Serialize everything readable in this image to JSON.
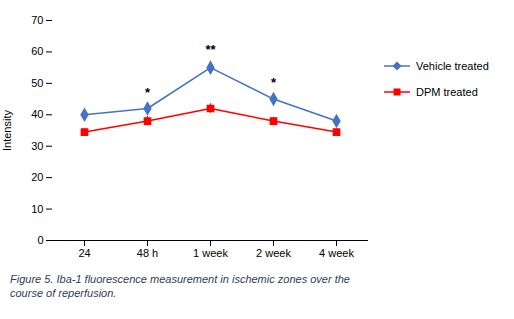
{
  "chart_data": {
    "type": "line",
    "ylabel": "Intensity",
    "caption": "Figure 5. Iba-1 fluorescence measurement in ischemic zones over the\ncourse of reperfusion.",
    "categories": [
      "24",
      "48 h",
      "1 week",
      "2 week",
      "4 week"
    ],
    "series": [
      {
        "name": "Vehicle treated",
        "color": "#4472C4",
        "marker": "diamond",
        "values": [
          40,
          42,
          55,
          45,
          38
        ],
        "yerr": [
          1.5,
          1.5,
          2.0,
          1.5,
          1.5
        ]
      },
      {
        "name": "DPM treated",
        "color": "#FF0000",
        "marker": "square",
        "values": [
          34.5,
          38,
          42,
          38,
          34.5
        ],
        "yerr": [
          1.2,
          1.5,
          1.5,
          1.2,
          1.0
        ]
      }
    ],
    "annotations": [
      {
        "text": "*",
        "x": "48 h",
        "y": 44.5
      },
      {
        "text": "**",
        "x": "1 week",
        "y": 58
      },
      {
        "text": "*",
        "x": "2 week",
        "y": 47.5
      }
    ],
    "ylim": [
      0,
      70
    ],
    "yticks": [
      0,
      10,
      20,
      30,
      40,
      50,
      60,
      70
    ],
    "legend": "right"
  }
}
